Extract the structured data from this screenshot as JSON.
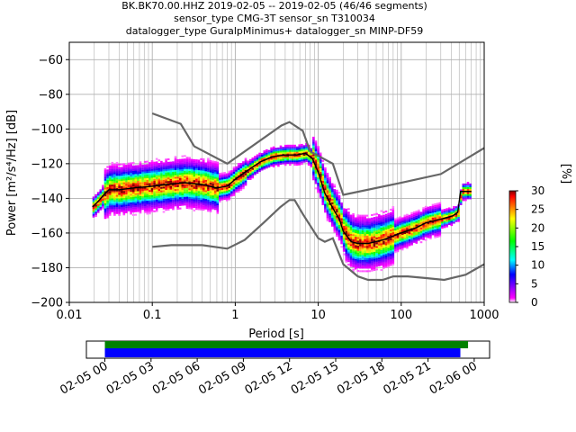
{
  "title_lines": [
    "BK.BK70.00.HHZ   2019-02-05 -- 2019-02-05  (46/46 segments)",
    "sensor_type CMG-3T sensor_sn T310034",
    "datalogger_type GuralpMinimus+ datalogger_sn MINP-DF59"
  ],
  "chart_data": {
    "type": "heatmap",
    "xlabel": "Period [s]",
    "ylabel": "Power [m²/s⁴/Hz] [dB]",
    "xscale": "log",
    "xlim": [
      0.01,
      1000
    ],
    "ylim": [
      -200,
      -50
    ],
    "xticks": [
      {
        "v": 0.01,
        "label": "0.01"
      },
      {
        "v": 0.1,
        "label": "0.1"
      },
      {
        "v": 1,
        "label": "1"
      },
      {
        "v": 10,
        "label": "10"
      },
      {
        "v": 100,
        "label": "100"
      },
      {
        "v": 1000,
        "label": "1000"
      }
    ],
    "yticks": [
      {
        "v": -60,
        "label": "−60"
      },
      {
        "v": -80,
        "label": "−80"
      },
      {
        "v": -100,
        "label": "−100"
      },
      {
        "v": -120,
        "label": "−120"
      },
      {
        "v": -140,
        "label": "−140"
      },
      {
        "v": -160,
        "label": "−160"
      },
      {
        "v": -180,
        "label": "−180"
      },
      {
        "v": -200,
        "label": "−200"
      }
    ],
    "grid": true,
    "mean_psd": [
      [
        0.019,
        -145
      ],
      [
        0.022,
        -142
      ],
      [
        0.026,
        -138
      ],
      [
        0.03,
        -135
      ],
      [
        0.04,
        -135
      ],
      [
        0.06,
        -134
      ],
      [
        0.1,
        -133
      ],
      [
        0.15,
        -132
      ],
      [
        0.25,
        -131
      ],
      [
        0.4,
        -132
      ],
      [
        0.6,
        -134
      ],
      [
        0.8,
        -133
      ],
      [
        1.0,
        -129
      ],
      [
        1.4,
        -124
      ],
      [
        2.0,
        -119
      ],
      [
        2.8,
        -116
      ],
      [
        4.0,
        -115
      ],
      [
        5.5,
        -115
      ],
      [
        7.0,
        -114
      ],
      [
        8.5,
        -117
      ],
      [
        10,
        -125
      ],
      [
        12,
        -137
      ],
      [
        14,
        -143
      ],
      [
        16,
        -148
      ],
      [
        18,
        -152
      ],
      [
        20,
        -159
      ],
      [
        25,
        -165
      ],
      [
        30,
        -166
      ],
      [
        40,
        -166
      ],
      [
        60,
        -164
      ],
      [
        100,
        -160
      ],
      [
        150,
        -157
      ],
      [
        200,
        -154
      ],
      [
        300,
        -152
      ],
      [
        420,
        -150
      ],
      [
        480,
        -148
      ],
      [
        520,
        -136
      ],
      [
        700,
        -136
      ]
    ],
    "nlnm": [
      [
        0.1,
        -168
      ],
      [
        0.17,
        -167
      ],
      [
        0.4,
        -167
      ],
      [
        0.8,
        -169
      ],
      [
        1.3,
        -164
      ],
      [
        2.2,
        -154
      ],
      [
        3.5,
        -145
      ],
      [
        4.5,
        -141
      ],
      [
        5.2,
        -141
      ],
      [
        6.5,
        -149
      ],
      [
        10,
        -163
      ],
      [
        12,
        -165
      ],
      [
        15,
        -163
      ],
      [
        20,
        -178
      ],
      [
        30,
        -185
      ],
      [
        40,
        -187
      ],
      [
        60,
        -187
      ],
      [
        80,
        -185
      ],
      [
        120,
        -185
      ],
      [
        200,
        -186
      ],
      [
        330,
        -187
      ],
      [
        600,
        -184
      ],
      [
        1000,
        -178
      ]
    ],
    "nhnm": [
      [
        0.1,
        -91
      ],
      [
        0.22,
        -97
      ],
      [
        0.32,
        -110
      ],
      [
        0.8,
        -120
      ],
      [
        3.6,
        -98
      ],
      [
        4.5,
        -96
      ],
      [
        6.5,
        -101
      ],
      [
        8.0,
        -113
      ],
      [
        15,
        -120
      ],
      [
        20,
        -138
      ],
      [
        100,
        -131
      ],
      [
        300,
        -126
      ],
      [
        1000,
        -111
      ]
    ],
    "colorbar": {
      "label": "[%]",
      "range": [
        0,
        30
      ],
      "ticks": [
        "0",
        "5",
        "10",
        "15",
        "20",
        "25",
        "30"
      ],
      "colors": [
        "#ffffff",
        "#ff00ff",
        "#0000ff",
        "#00ffff",
        "#00ff00",
        "#ffff00",
        "#ff8000",
        "#ff0000",
        "#800000"
      ]
    },
    "time_axis": {
      "ticks": [
        "02-05 00",
        "02-05 03",
        "02-05 06",
        "02-05 09",
        "02-05 12",
        "02-05 15",
        "02-05 18",
        "02-05 21",
        "02-06 00"
      ],
      "green_bar_hours": [
        0,
        23.6
      ],
      "blue_bar_hours": [
        0,
        23.1
      ],
      "range_hours": [
        -1.2,
        25
      ]
    },
    "colors": {
      "nlnm": "#666666",
      "nhnm": "#666666",
      "mean": "#000000",
      "green_bar": "#008000",
      "blue_bar": "#0000ff",
      "grid": "#b0b0b0"
    }
  }
}
